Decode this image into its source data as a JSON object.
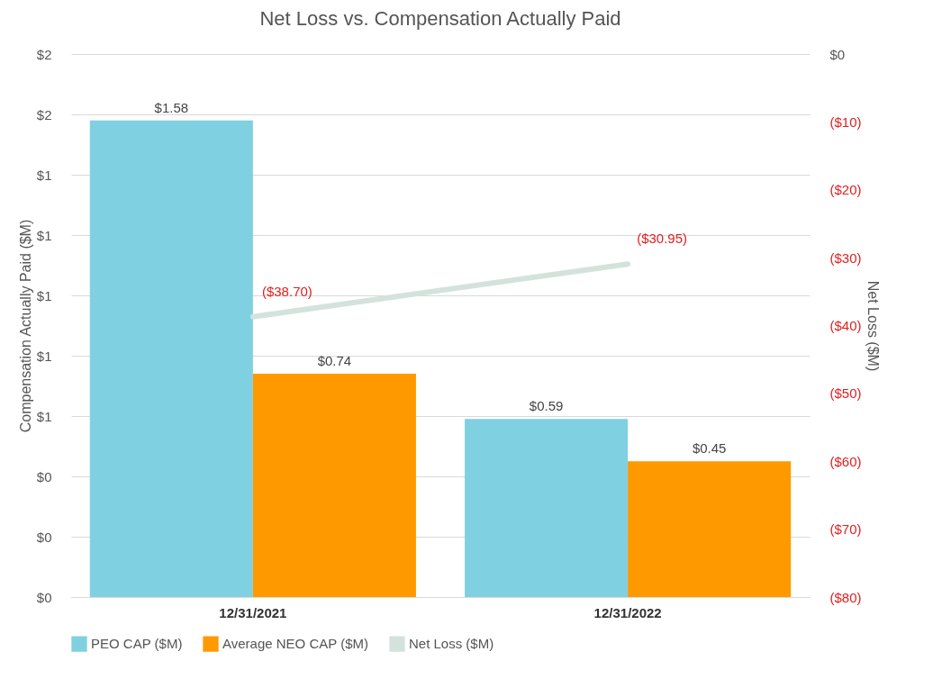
{
  "chart_data": {
    "type": "bar",
    "title": "Net Loss vs. Compensation Actually Paid",
    "ylabel": "Compensation Actually Paid ($M)",
    "y2label": "Net Loss ($M)",
    "categories": [
      "12/31/2021",
      "12/31/2022"
    ],
    "series": [
      {
        "name": "PEO CAP ($M)",
        "color": "#7fd0e1",
        "values": [
          1.58,
          0.59
        ],
        "value_labels": [
          "$1.58",
          "$0.59"
        ]
      },
      {
        "name": "Average NEO CAP ($M)",
        "color": "#ff9900",
        "values": [
          0.74,
          0.45
        ],
        "value_labels": [
          "$0.74",
          "$0.45"
        ]
      },
      {
        "name": "Net Loss ($M)",
        "type": "line",
        "axis": "y2",
        "color": "#d3e3dc",
        "values": [
          -38.7,
          -30.95
        ],
        "value_labels": [
          "($38.70)",
          "($30.95)"
        ]
      }
    ],
    "ylim": [
      0,
      1.8
    ],
    "yticks": [
      {
        "value": 0,
        "label": "$0"
      },
      {
        "value": 0.2,
        "label": "$0"
      },
      {
        "value": 0.4,
        "label": "$0"
      },
      {
        "value": 0.6,
        "label": "$1"
      },
      {
        "value": 0.8,
        "label": "$1"
      },
      {
        "value": 1.0,
        "label": "$1"
      },
      {
        "value": 1.2,
        "label": "$1"
      },
      {
        "value": 1.4,
        "label": "$1"
      },
      {
        "value": 1.6,
        "label": "$2"
      },
      {
        "value": 1.8,
        "label": "$2"
      }
    ],
    "y2lim": [
      -80,
      0
    ],
    "y2ticks": [
      {
        "value": -80,
        "label": "($80)"
      },
      {
        "value": -70,
        "label": "($70)"
      },
      {
        "value": -60,
        "label": "($60)"
      },
      {
        "value": -50,
        "label": "($50)"
      },
      {
        "value": -40,
        "label": "($40)"
      },
      {
        "value": -30,
        "label": "($30)"
      },
      {
        "value": -20,
        "label": "($20)"
      },
      {
        "value": -10,
        "label": "($10)"
      },
      {
        "value": 0,
        "label": "$0"
      }
    ],
    "grid": "y",
    "legend": "bottom"
  }
}
